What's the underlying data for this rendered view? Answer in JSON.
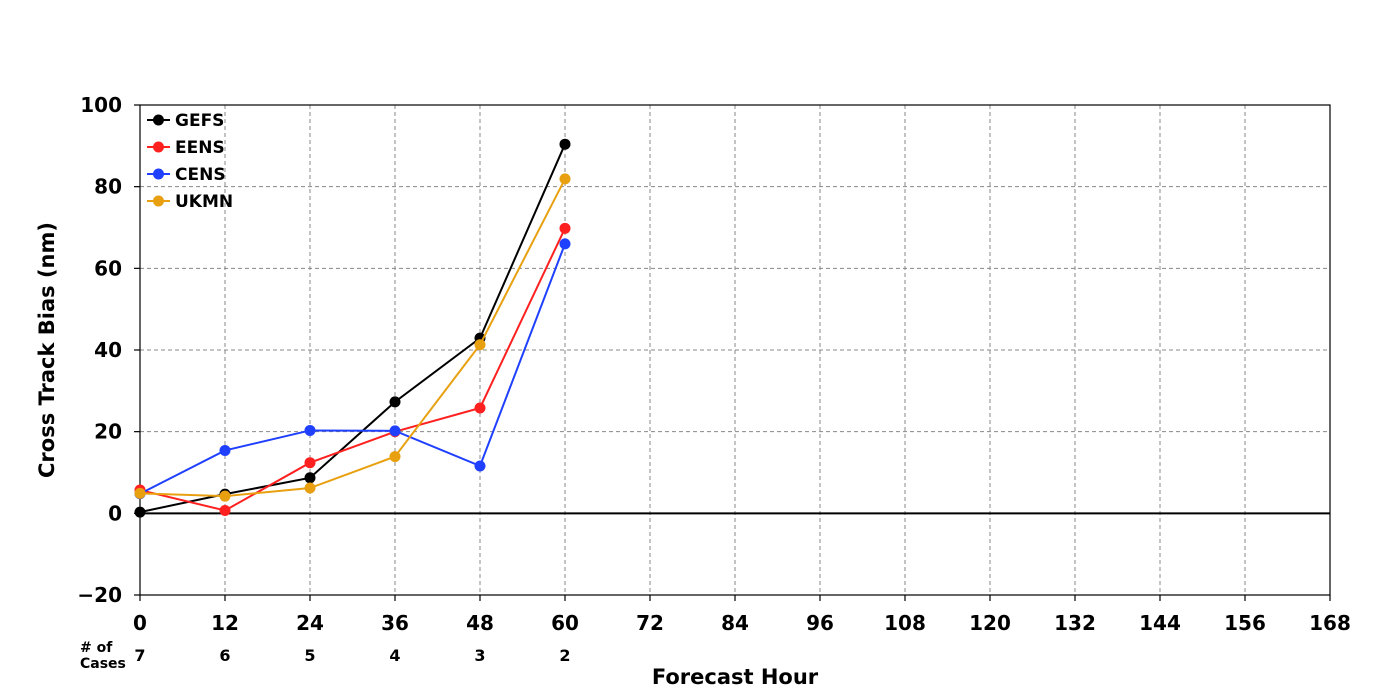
{
  "chart_data": {
    "type": "line",
    "title": "",
    "xlabel": "Forecast Hour",
    "ylabel": "Cross Track Bias (nm)",
    "xlim": [
      0,
      168
    ],
    "ylim": [
      -20,
      100
    ],
    "xticks": [
      0,
      12,
      24,
      36,
      48,
      60,
      72,
      84,
      96,
      108,
      120,
      132,
      144,
      156,
      168
    ],
    "yticks": [
      -20,
      0,
      20,
      40,
      60,
      80,
      100
    ],
    "ytick_labels": [
      "−20",
      "0",
      "20",
      "40",
      "60",
      "80",
      "100"
    ],
    "grid": true,
    "legend_position": "top-left",
    "cases_label_line1": "# of",
    "cases_label_line2": "Cases",
    "cases": [
      {
        "x": 0,
        "n": "7"
      },
      {
        "x": 12,
        "n": "6"
      },
      {
        "x": 24,
        "n": "5"
      },
      {
        "x": 36,
        "n": "4"
      },
      {
        "x": 48,
        "n": "3"
      },
      {
        "x": 60,
        "n": "2"
      }
    ],
    "series": [
      {
        "name": "GEFS",
        "color": "#000000",
        "x": [
          0,
          12,
          24,
          36,
          48,
          60
        ],
        "y": [
          0.3,
          4.7,
          8.7,
          27.3,
          42.9,
          90.4
        ]
      },
      {
        "name": "EENS",
        "color": "#ff2020",
        "x": [
          0,
          12,
          24,
          36,
          48,
          60
        ],
        "y": [
          5.7,
          0.7,
          12.4,
          20.0,
          25.8,
          69.8
        ]
      },
      {
        "name": "CENS",
        "color": "#2040ff",
        "x": [
          0,
          12,
          24,
          36,
          48,
          60
        ],
        "y": [
          4.8,
          15.4,
          20.3,
          20.2,
          11.6,
          66.0
        ]
      },
      {
        "name": "UKMN",
        "color": "#e8a010",
        "x": [
          0,
          12,
          24,
          36,
          48,
          60
        ],
        "y": [
          4.9,
          4.2,
          6.2,
          13.9,
          41.3,
          81.9
        ]
      }
    ]
  }
}
